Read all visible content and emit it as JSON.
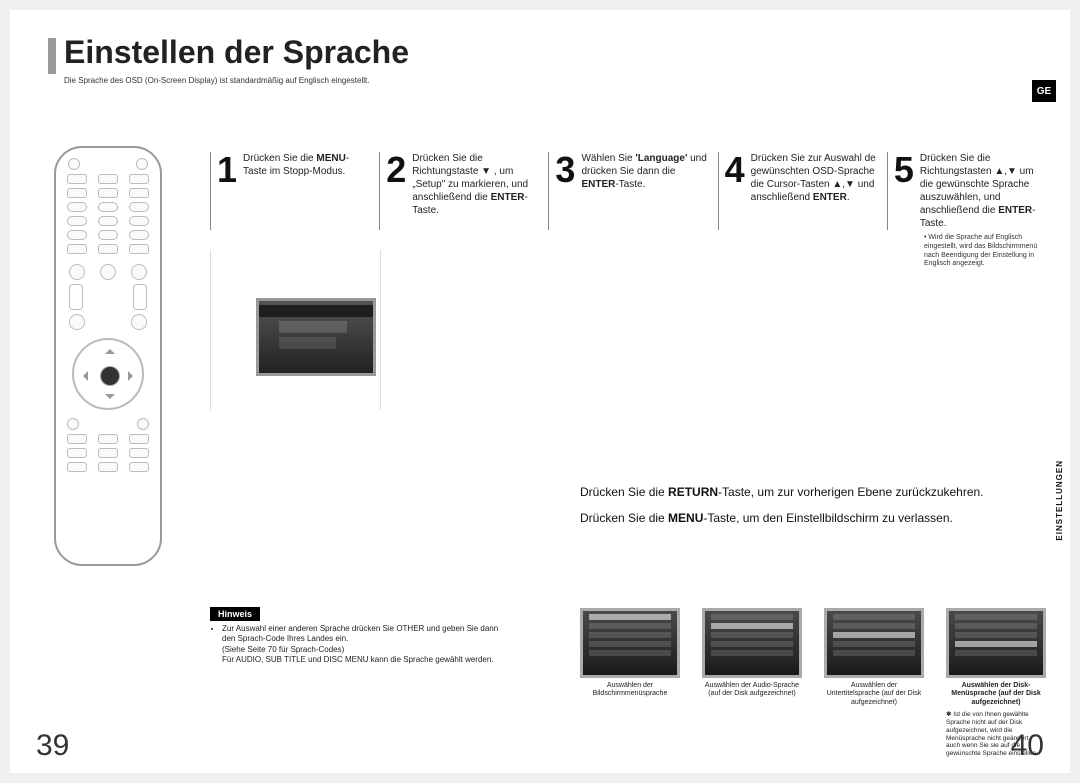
{
  "title": "Einstellen der Sprache",
  "subtitle": "Die Sprache des OSD (On-Screen Display) ist standardmäßig auf Englisch eingestellt.",
  "lang_badge": "GE",
  "side_tab": "EINSTELLUNGEN",
  "page_left": "39",
  "page_right": "40",
  "steps": [
    {
      "num": "1",
      "html": "Drücken Sie die <b>MENU</b>-Taste im Stopp-Modus."
    },
    {
      "num": "2",
      "html": "Drücken Sie die Richtungstaste ▼ , um „Setup\" zu markieren, und anschließend die <b>ENTER</b>-Taste."
    },
    {
      "num": "3",
      "html": "Wählen Sie <b>'Language'</b> und drücken Sie dann die <b>ENTER</b>-Taste."
    },
    {
      "num": "4",
      "html": "Drücken Sie zur Auswahl de gewünschten OSD-Sprache die Cursor-Tasten ▲,▼ und anschließend <b>ENTER</b>."
    },
    {
      "num": "5",
      "html": "Drücken Sie die Richtungstasten ▲,▼ um die gewünschte Sprache auszuwählen, und anschließend die <b>ENTER</b>-Taste."
    }
  ],
  "step5_note": "Wird die Sprache auf Englisch eingestellt, wird das Bildschirmmenü nach Beendigung der Einstellung in Englisch angezeigt.",
  "return_lines": [
    "Drücken Sie die <b>RETURN</b>-Taste, um zur vorherigen Ebene zurückzukehren.",
    "Drücken Sie die <b>MENU</b>-Taste, um den Einstellbildschirm zu verlassen."
  ],
  "hinweis": {
    "label": "Hinweis",
    "items": [
      "Zur Auswahl einer anderen Sprache drücken Sie OTHER und geben Sie dann den Sprach-Code Ihres Landes ein.<br>(Siehe Seite 70 für Sprach-Codes)<br>Für AUDIO, SUB TITLE und DISC MENU kann die Sprache gewählt werden."
    ]
  },
  "tvs": [
    {
      "cap": "Auswählen der Bildschirmmenüsprache",
      "bold": false,
      "hl": 0
    },
    {
      "cap": "Auswählen der Audio-Sprache (auf der Disk aufgezeichnet)",
      "bold": false,
      "hl": 1
    },
    {
      "cap": "Auswählen der Untertitelsprache (auf der Disk aufgezeichnet)",
      "bold": false,
      "hl": 2
    },
    {
      "cap": "Auswählen der Disk-Menüsprache (auf der Disk aufgezeichnet)",
      "bold": true,
      "hl": 3,
      "foot": "✱ Ist die von Ihnen gewählte Sprache nicht auf der Disk aufgezeichnet, wird die Menüsprache nicht geändert, auch wenn Sie sie auf die gewünschte Sprache einstellen."
    }
  ]
}
